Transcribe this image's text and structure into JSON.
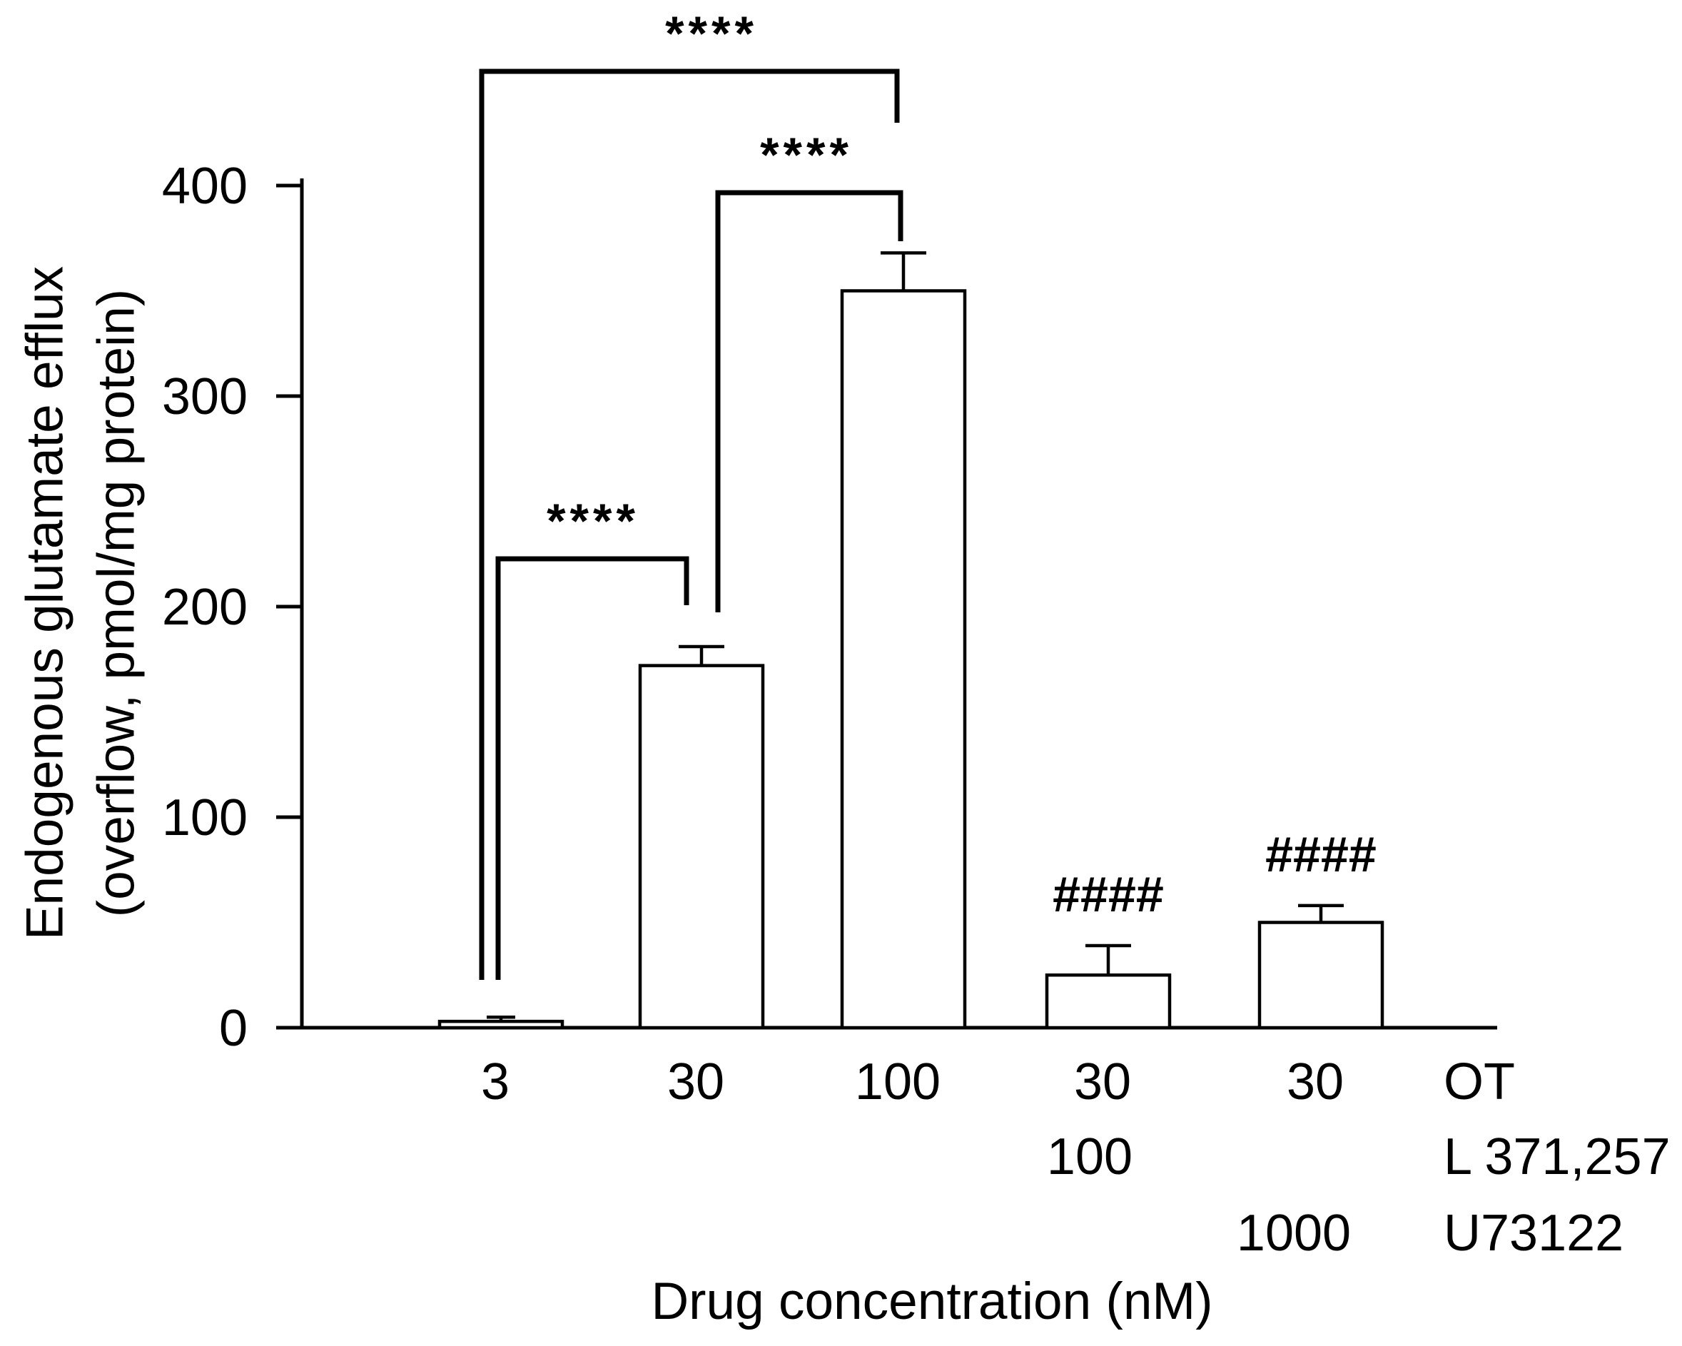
{
  "figure": {
    "background_color": "#ffffff",
    "ink_color": "#000000"
  },
  "chart_data": {
    "type": "bar",
    "title": "",
    "xlabel": "Drug concentration (nM)",
    "ylabel_lines": [
      "Endogenous glutamate efflux",
      "(overflow, pmol/mg protein)"
    ],
    "ylim": [
      0,
      400
    ],
    "yticks": [
      0,
      100,
      200,
      300,
      400
    ],
    "grid": false,
    "legend": "none",
    "bar_fill": "#ffffff",
    "bar_edge": "#000000",
    "bars": [
      {
        "concentration_label": "3",
        "value": 3,
        "error": 2
      },
      {
        "concentration_label": "30",
        "value": 172,
        "error": 9
      },
      {
        "concentration_label": "100",
        "value": 350,
        "error": 18
      },
      {
        "concentration_label": "30",
        "value": 25,
        "error": 14
      },
      {
        "concentration_label": "30",
        "value": 50,
        "error": 8
      }
    ],
    "x_label_rows": [
      {
        "row": 1,
        "entries": [
          {
            "bar_index": 0,
            "text": "3"
          },
          {
            "bar_index": 1,
            "text": "30"
          },
          {
            "bar_index": 2,
            "text": "100"
          },
          {
            "bar_index": 3,
            "text": "30"
          },
          {
            "bar_index": 4,
            "text": "30"
          }
        ],
        "drug_name": "OT"
      },
      {
        "row": 2,
        "entries": [
          {
            "bar_index": 3,
            "text": "100"
          }
        ],
        "drug_name": "L 371,257"
      },
      {
        "row": 3,
        "entries": [
          {
            "bar_index": 4,
            "text": "1000"
          }
        ],
        "drug_name": "U73122"
      }
    ],
    "significance_brackets": [
      {
        "between_bars": [
          0,
          2
        ],
        "label": "****"
      },
      {
        "between_bars": [
          1,
          2
        ],
        "label": "****"
      },
      {
        "between_bars": [
          0,
          1
        ],
        "label": "****"
      }
    ],
    "hash_annotations": [
      {
        "bar_index": 3,
        "label": "####"
      },
      {
        "bar_index": 4,
        "label": "####"
      }
    ]
  }
}
